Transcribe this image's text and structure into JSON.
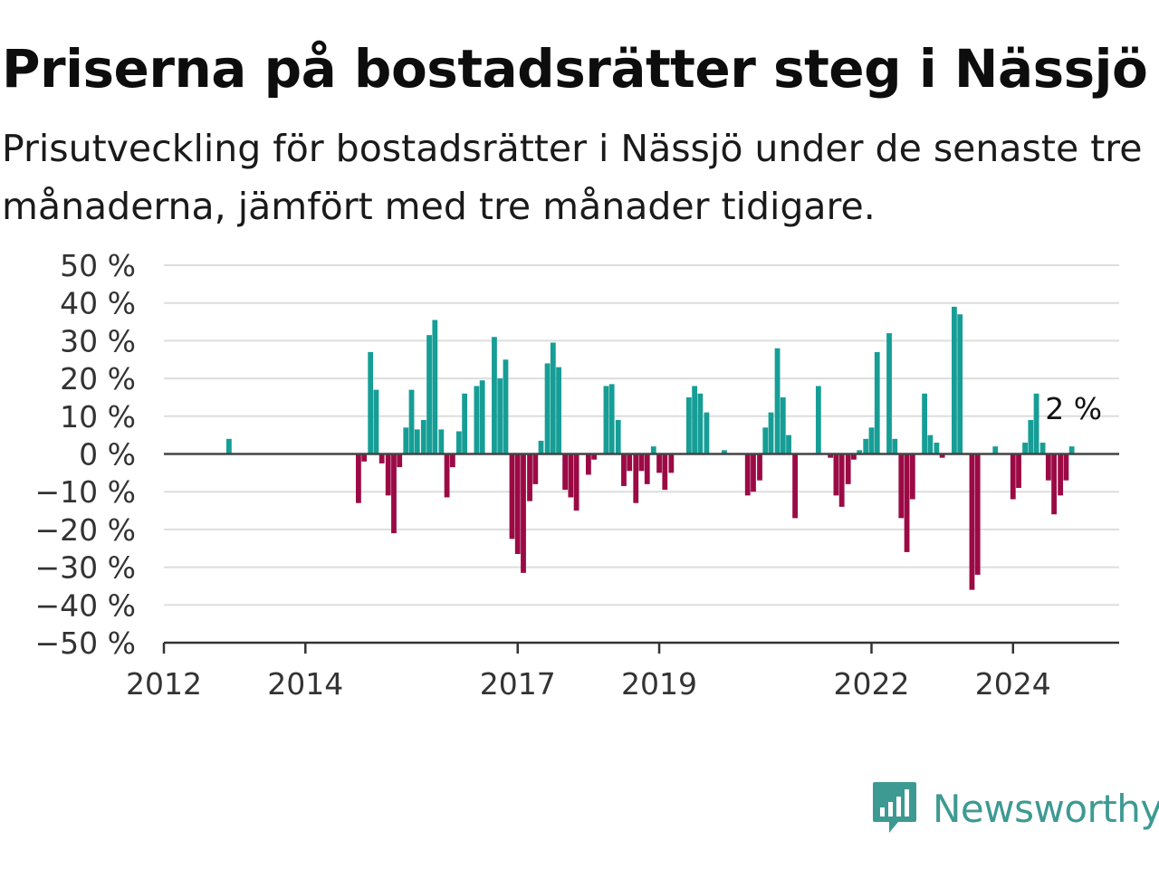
{
  "title": "Priserna på bostadsrätter steg i Nässjö",
  "subtitle": "Prisutveckling för bostadsrätter i Nässjö under de senaste tre månaderna, jämfört med tre månader tidigare.",
  "logo": {
    "text": "Newsworthy",
    "icon": "newsworthy-bar-chart-icon",
    "color": "#3d9a92"
  },
  "chart_data": {
    "type": "bar",
    "x_unit": "year",
    "xlim": [
      2012,
      2025.5
    ],
    "ylim": [
      -50,
      50
    ],
    "ylabel": "",
    "xlabel": "",
    "grid": true,
    "y_ticks": [
      {
        "value": 50,
        "label": "50 %"
      },
      {
        "value": 40,
        "label": "40 %"
      },
      {
        "value": 30,
        "label": "30 %"
      },
      {
        "value": 20,
        "label": "20 %"
      },
      {
        "value": 10,
        "label": "10 %"
      },
      {
        "value": 0,
        "label": "0 %"
      },
      {
        "value": -10,
        "label": "−10 %"
      },
      {
        "value": -20,
        "label": "−20 %"
      },
      {
        "value": -30,
        "label": "−30 %"
      },
      {
        "value": -40,
        "label": "−40 %"
      },
      {
        "value": -50,
        "label": "−50 %"
      }
    ],
    "x_ticks": [
      {
        "value": 2012,
        "label": "2012"
      },
      {
        "value": 2014,
        "label": "2014"
      },
      {
        "value": 2017,
        "label": "2017"
      },
      {
        "value": 2019,
        "label": "2019"
      },
      {
        "value": 2022,
        "label": "2022"
      },
      {
        "value": 2024,
        "label": "2024"
      }
    ],
    "colors": {
      "positive": "#169e96",
      "negative": "#9b0a45",
      "grid": "#dddddd",
      "zero_line": "#444444",
      "axis": "#333333"
    },
    "last_value_label": "2 %",
    "points": [
      {
        "x": 2012.92,
        "y": 4
      },
      {
        "x": 2014.75,
        "y": -13
      },
      {
        "x": 2014.83,
        "y": -2
      },
      {
        "x": 2014.92,
        "y": 27
      },
      {
        "x": 2015.0,
        "y": 17
      },
      {
        "x": 2015.08,
        "y": -2.5
      },
      {
        "x": 2015.17,
        "y": -11
      },
      {
        "x": 2015.25,
        "y": -21
      },
      {
        "x": 2015.33,
        "y": -3.5
      },
      {
        "x": 2015.42,
        "y": 7
      },
      {
        "x": 2015.5,
        "y": 17
      },
      {
        "x": 2015.58,
        "y": 6.5
      },
      {
        "x": 2015.67,
        "y": 9
      },
      {
        "x": 2015.75,
        "y": 31.5
      },
      {
        "x": 2015.83,
        "y": 35.5
      },
      {
        "x": 2015.92,
        "y": 6.5
      },
      {
        "x": 2016.0,
        "y": -11.5
      },
      {
        "x": 2016.08,
        "y": -3.5
      },
      {
        "x": 2016.17,
        "y": 6
      },
      {
        "x": 2016.25,
        "y": 16
      },
      {
        "x": 2016.42,
        "y": 18
      },
      {
        "x": 2016.5,
        "y": 19.5
      },
      {
        "x": 2016.67,
        "y": 31
      },
      {
        "x": 2016.75,
        "y": 20
      },
      {
        "x": 2016.83,
        "y": 25
      },
      {
        "x": 2016.92,
        "y": -22.5
      },
      {
        "x": 2017.0,
        "y": -26.5
      },
      {
        "x": 2017.08,
        "y": -31.5
      },
      {
        "x": 2017.17,
        "y": -12.5
      },
      {
        "x": 2017.25,
        "y": -8
      },
      {
        "x": 2017.33,
        "y": 3.5
      },
      {
        "x": 2017.42,
        "y": 24
      },
      {
        "x": 2017.5,
        "y": 29.5
      },
      {
        "x": 2017.58,
        "y": 23
      },
      {
        "x": 2017.67,
        "y": -9.5
      },
      {
        "x": 2017.75,
        "y": -11.5
      },
      {
        "x": 2017.83,
        "y": -15
      },
      {
        "x": 2018.0,
        "y": -5.5
      },
      {
        "x": 2018.08,
        "y": -1.5
      },
      {
        "x": 2018.25,
        "y": 18
      },
      {
        "x": 2018.33,
        "y": 18.5
      },
      {
        "x": 2018.42,
        "y": 9
      },
      {
        "x": 2018.5,
        "y": -8.5
      },
      {
        "x": 2018.58,
        "y": -4.5
      },
      {
        "x": 2018.67,
        "y": -13
      },
      {
        "x": 2018.75,
        "y": -4.5
      },
      {
        "x": 2018.83,
        "y": -8
      },
      {
        "x": 2018.92,
        "y": 2
      },
      {
        "x": 2019.0,
        "y": -5
      },
      {
        "x": 2019.08,
        "y": -9.5
      },
      {
        "x": 2019.17,
        "y": -5
      },
      {
        "x": 2019.42,
        "y": 15
      },
      {
        "x": 2019.5,
        "y": 18
      },
      {
        "x": 2019.58,
        "y": 16
      },
      {
        "x": 2019.67,
        "y": 11
      },
      {
        "x": 2019.92,
        "y": 1
      },
      {
        "x": 2020.25,
        "y": -11
      },
      {
        "x": 2020.33,
        "y": -10
      },
      {
        "x": 2020.42,
        "y": -7
      },
      {
        "x": 2020.5,
        "y": 7
      },
      {
        "x": 2020.58,
        "y": 11
      },
      {
        "x": 2020.67,
        "y": 28
      },
      {
        "x": 2020.75,
        "y": 15
      },
      {
        "x": 2020.83,
        "y": 5
      },
      {
        "x": 2020.92,
        "y": -17
      },
      {
        "x": 2021.25,
        "y": 18
      },
      {
        "x": 2021.42,
        "y": -1
      },
      {
        "x": 2021.5,
        "y": -11
      },
      {
        "x": 2021.58,
        "y": -14
      },
      {
        "x": 2021.67,
        "y": -8
      },
      {
        "x": 2021.75,
        "y": -1.5
      },
      {
        "x": 2021.83,
        "y": 1
      },
      {
        "x": 2021.92,
        "y": 4
      },
      {
        "x": 2022.0,
        "y": 7
      },
      {
        "x": 2022.08,
        "y": 27
      },
      {
        "x": 2022.25,
        "y": 32
      },
      {
        "x": 2022.33,
        "y": 4
      },
      {
        "x": 2022.42,
        "y": -17
      },
      {
        "x": 2022.5,
        "y": -26
      },
      {
        "x": 2022.58,
        "y": -12
      },
      {
        "x": 2022.75,
        "y": 16
      },
      {
        "x": 2022.83,
        "y": 5
      },
      {
        "x": 2022.92,
        "y": 3
      },
      {
        "x": 2023.0,
        "y": -1
      },
      {
        "x": 2023.17,
        "y": 39
      },
      {
        "x": 2023.25,
        "y": 37
      },
      {
        "x": 2023.42,
        "y": -36
      },
      {
        "x": 2023.5,
        "y": -32
      },
      {
        "x": 2023.75,
        "y": 2
      },
      {
        "x": 2024.0,
        "y": -12
      },
      {
        "x": 2024.08,
        "y": -9
      },
      {
        "x": 2024.17,
        "y": 3
      },
      {
        "x": 2024.25,
        "y": 9
      },
      {
        "x": 2024.33,
        "y": 16
      },
      {
        "x": 2024.42,
        "y": 3
      },
      {
        "x": 2024.5,
        "y": -7
      },
      {
        "x": 2024.58,
        "y": -16
      },
      {
        "x": 2024.67,
        "y": -11
      },
      {
        "x": 2024.75,
        "y": -7
      },
      {
        "x": 2024.83,
        "y": 2
      }
    ]
  }
}
